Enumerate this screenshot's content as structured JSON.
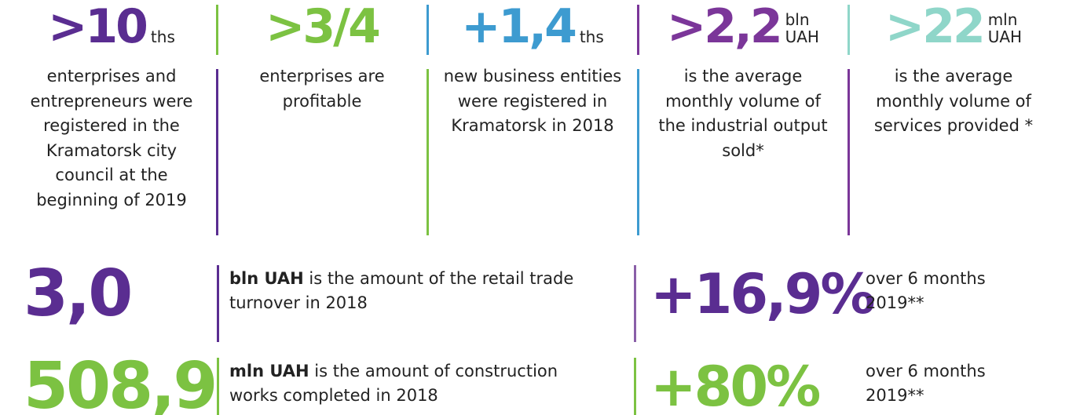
{
  "stats": [
    {
      "value": ">10",
      "unit": [
        "ths"
      ],
      "text": "enterprises and entrepreneurs were registered in the Kramatorsk city council at the beginning of 2019",
      "color": "#5a2d91"
    },
    {
      "value": ">3/4",
      "unit": [],
      "text": "enterprises are profitable",
      "color": "#7cc242"
    },
    {
      "value": "+1,4",
      "unit": [
        "ths"
      ],
      "text": "new business entities were registered in Kramatorsk in 2018",
      "color": "#3d9bd0"
    },
    {
      "value": ">2,2",
      "unit": [
        "bln",
        "UAH"
      ],
      "text": "is the average monthly volume of the industrial output sold*",
      "color": "#7b3699"
    },
    {
      "value": ">22",
      "unit": [
        "mln",
        "UAH"
      ],
      "text": "is the average monthly volume of services provided *",
      "color": "#8fd6c9"
    }
  ],
  "rows": [
    {
      "value": "3,0",
      "unit": "bln UAH",
      "text": " is the amount of the retail trade turnover in 2018",
      "change": "+16,9%",
      "period": "over 6 months 2019**",
      "color": "#5a2d91"
    },
    {
      "value": "508,9",
      "unit": "mln UAH",
      "text": " is the amount of construction works completed in 2018",
      "change": "+80%",
      "period": "over 6 months 2019**",
      "color": "#7cc242"
    }
  ]
}
